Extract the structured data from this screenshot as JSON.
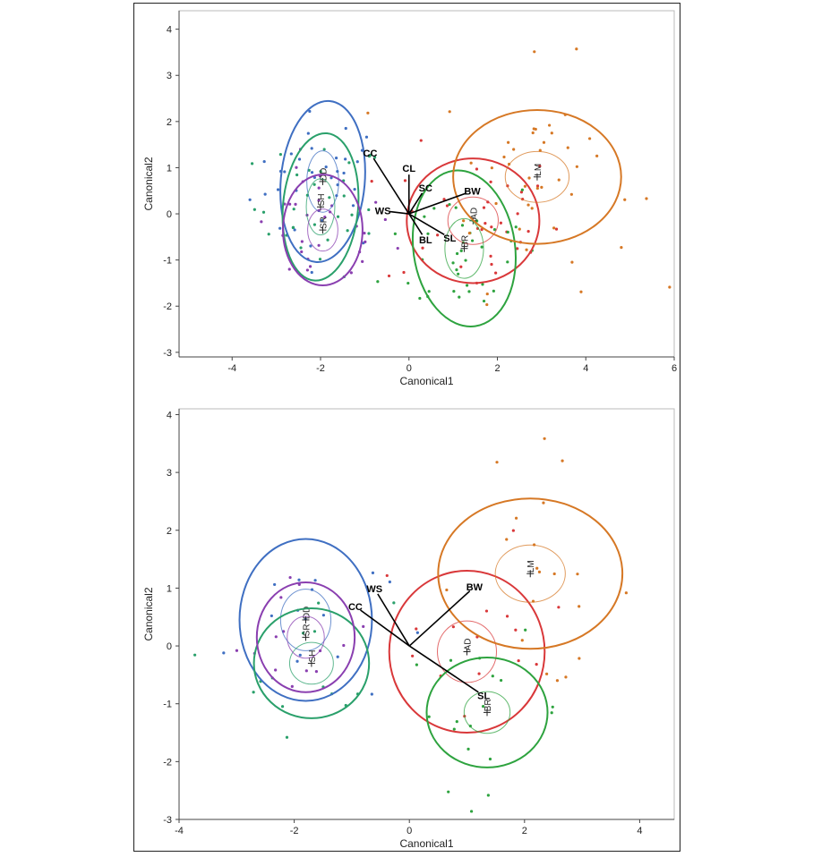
{
  "chart_data": [
    {
      "type": "scatter",
      "xlabel": "Canonical1",
      "ylabel": "Canonical2",
      "xlim": [
        -5.2,
        6
      ],
      "ylim": [
        -3.1,
        4.4
      ],
      "xticks": [
        -4,
        -2,
        0,
        2,
        4,
        6
      ],
      "yticks": [
        -3,
        -2,
        -1,
        0,
        1,
        2,
        3,
        4
      ],
      "grid": false,
      "groups": [
        {
          "label": "DD",
          "color": "#3f6fc2",
          "mean": [
            -1.95,
            0.7
          ],
          "rx": 0.95,
          "ry": 1.75,
          "angle": 5,
          "n": 34,
          "spread": [
            0.8,
            0.75
          ]
        },
        {
          "label": "SH",
          "color": "#2aa06b",
          "mean": [
            -2.0,
            0.15
          ],
          "rx": 0.85,
          "ry": 1.6,
          "angle": 5,
          "n": 32,
          "spread": [
            0.75,
            0.75
          ]
        },
        {
          "label": "SR",
          "color": "#8a3fb0",
          "mean": [
            -1.95,
            -0.35
          ],
          "rx": 0.9,
          "ry": 1.2,
          "angle": 0,
          "n": 32,
          "spread": [
            0.8,
            0.7
          ]
        },
        {
          "label": "AD",
          "color": "#d9383a",
          "mean": [
            1.45,
            -0.15
          ],
          "rx": 1.5,
          "ry": 1.35,
          "angle": 0,
          "n": 36,
          "spread": [
            1.0,
            0.8
          ]
        },
        {
          "label": "BR",
          "color": "#2ea33f",
          "mean": [
            1.25,
            -0.75
          ],
          "rx": 1.15,
          "ry": 1.7,
          "angle": -8,
          "n": 38,
          "spread": [
            0.9,
            0.85
          ]
        },
        {
          "label": "LM",
          "color": "#d67825",
          "mean": [
            2.9,
            0.8
          ],
          "rx": 1.9,
          "ry": 1.45,
          "angle": 0,
          "n": 44,
          "spread": [
            1.1,
            1.2
          ]
        }
      ],
      "vectors": [
        {
          "label": "CC",
          "x": -0.8,
          "y": 1.2
        },
        {
          "label": "CL",
          "x": 0.0,
          "y": 0.85
        },
        {
          "label": "SC",
          "x": 0.3,
          "y": 0.45
        },
        {
          "label": "BW",
          "x": 1.3,
          "y": 0.45
        },
        {
          "label": "WS",
          "x": -0.45,
          "y": 0.05
        },
        {
          "label": "BL",
          "x": 0.3,
          "y": -0.45
        },
        {
          "label": "SL",
          "x": 0.8,
          "y": -0.45
        }
      ]
    },
    {
      "type": "scatter",
      "xlabel": "Canonical1",
      "ylabel": "Canonical2",
      "xlim": [
        -4,
        4.6
      ],
      "ylim": [
        -3,
        4.1
      ],
      "xticks": [
        -4,
        -2,
        0,
        2,
        4
      ],
      "yticks": [
        -3,
        -2,
        -1,
        0,
        1,
        2,
        3,
        4
      ],
      "grid": false,
      "groups": [
        {
          "label": "DD",
          "color": "#3f6fc2",
          "mean": [
            -1.8,
            0.45
          ],
          "rx": 1.15,
          "ry": 1.4,
          "angle": 0,
          "n": 16,
          "spread": [
            0.7,
            0.8
          ]
        },
        {
          "label": "SH",
          "color": "#2aa06b",
          "mean": [
            -1.7,
            -0.3
          ],
          "rx": 1.0,
          "ry": 0.95,
          "angle": 0,
          "n": 14,
          "spread": [
            0.7,
            0.6
          ]
        },
        {
          "label": "SR",
          "color": "#8a3fb0",
          "mean": [
            -1.8,
            0.15
          ],
          "rx": 0.85,
          "ry": 0.95,
          "angle": 0,
          "n": 14,
          "spread": [
            0.6,
            0.6
          ]
        },
        {
          "label": "AD",
          "color": "#d9383a",
          "mean": [
            1.0,
            -0.1
          ],
          "rx": 1.35,
          "ry": 1.4,
          "angle": 0,
          "n": 16,
          "spread": [
            0.9,
            0.9
          ]
        },
        {
          "label": "BR",
          "color": "#2ea33f",
          "mean": [
            1.35,
            -1.15
          ],
          "rx": 1.05,
          "ry": 0.95,
          "angle": 0,
          "n": 18,
          "spread": [
            0.7,
            0.65
          ]
        },
        {
          "label": "LM",
          "color": "#d67825",
          "mean": [
            2.1,
            1.25
          ],
          "rx": 1.6,
          "ry": 1.3,
          "angle": 0,
          "n": 20,
          "spread": [
            0.9,
            1.0
          ]
        }
      ],
      "vectors": [
        {
          "label": "BW",
          "x": 1.05,
          "y": 0.95
        },
        {
          "label": "WS",
          "x": -0.55,
          "y": 0.9
        },
        {
          "label": "CC",
          "x": -0.85,
          "y": 0.62
        },
        {
          "label": "SL",
          "x": 1.2,
          "y": -0.8
        }
      ]
    }
  ]
}
